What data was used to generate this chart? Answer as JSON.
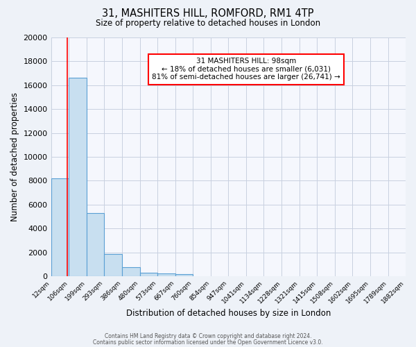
{
  "title": "31, MASHITERS HILL, ROMFORD, RM1 4TP",
  "subtitle": "Size of property relative to detached houses in London",
  "xlabel": "Distribution of detached houses by size in London",
  "ylabel": "Number of detached properties",
  "bin_edges": [
    12,
    106,
    199,
    293,
    386,
    480,
    573,
    667,
    760,
    854,
    947,
    1041,
    1134,
    1228,
    1321,
    1415,
    1508,
    1602,
    1695,
    1789,
    1882
  ],
  "bar_heights": [
    8200,
    16600,
    5300,
    1850,
    750,
    300,
    200,
    150,
    0,
    0,
    0,
    0,
    0,
    0,
    0,
    0,
    0,
    0,
    0,
    0
  ],
  "bar_color": "#c8dff0",
  "bar_edge_color": "#5a9fd4",
  "red_line_x": 98,
  "annotation_title": "31 MASHITERS HILL: 98sqm",
  "annotation_line1": "← 18% of detached houses are smaller (6,031)",
  "annotation_line2": "81% of semi-detached houses are larger (26,741) →",
  "ylim": [
    0,
    20000
  ],
  "yticks": [
    0,
    2000,
    4000,
    6000,
    8000,
    10000,
    12000,
    14000,
    16000,
    18000,
    20000
  ],
  "footer1": "Contains HM Land Registry data © Crown copyright and database right 2024.",
  "footer2": "Contains public sector information licensed under the Open Government Licence v3.0.",
  "bg_color": "#eef2f8",
  "plot_bg_color": "#f5f7fd",
  "grid_color": "#c8d0e0"
}
